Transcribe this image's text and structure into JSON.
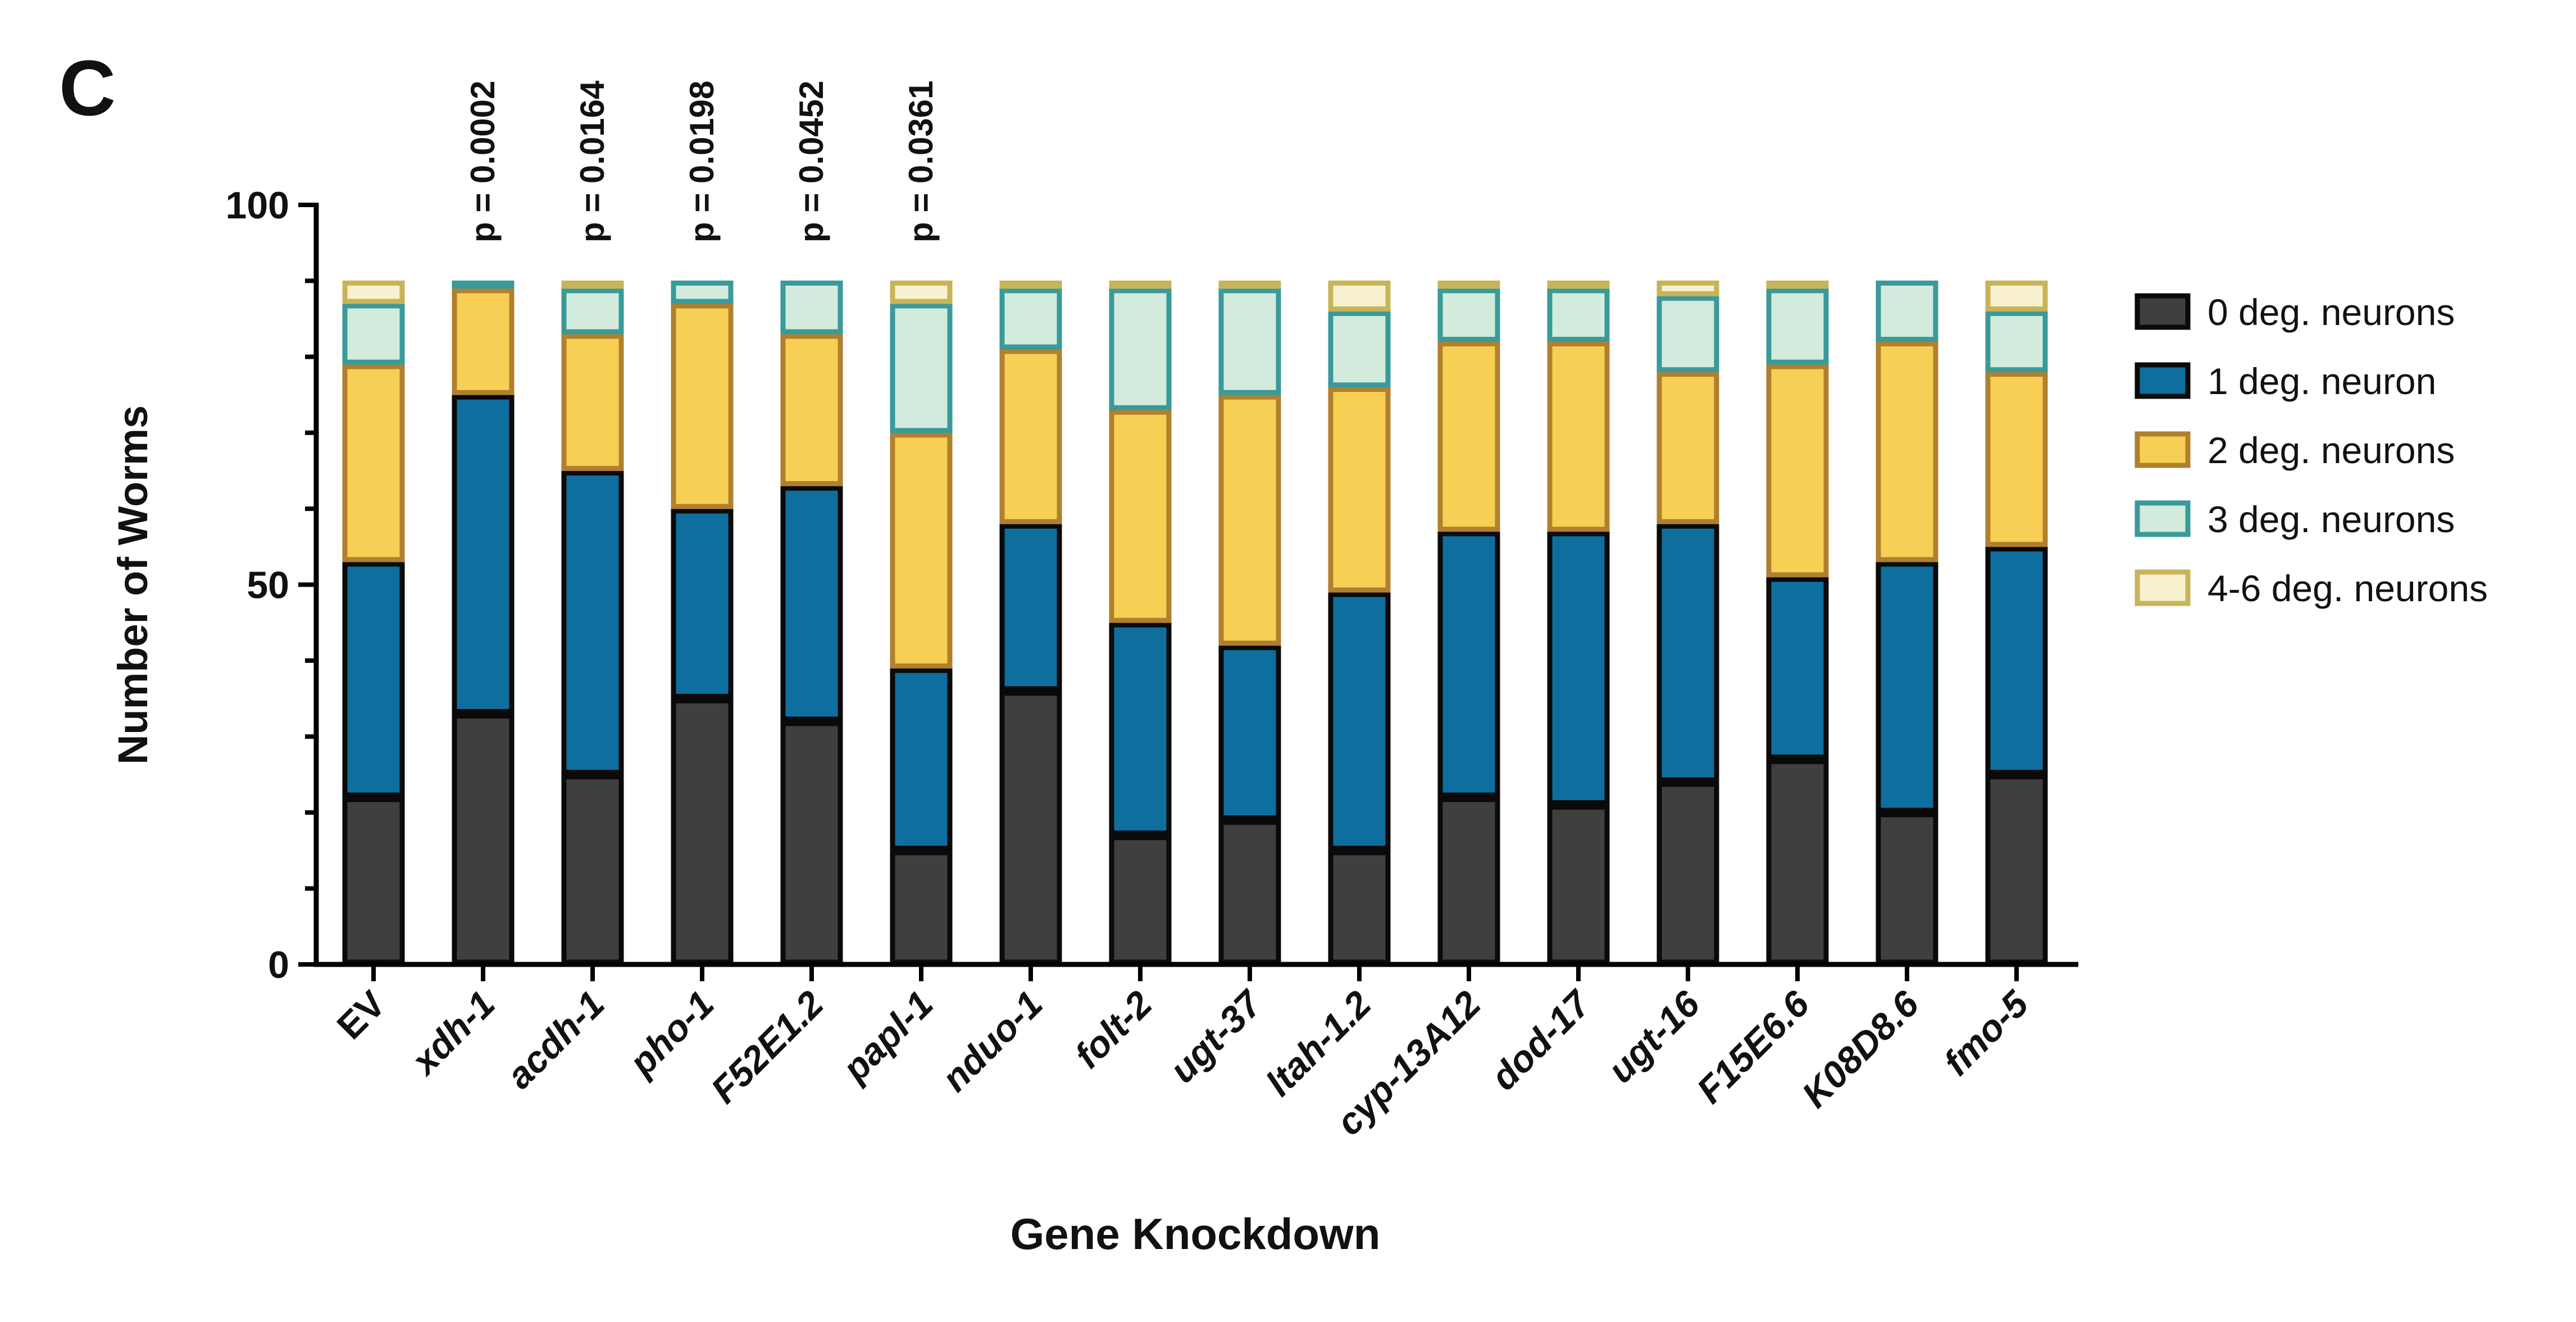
{
  "panel_label": "C",
  "colors": {
    "0 deg. neurons": {
      "fill": "#3f3f3f",
      "stroke": "#0a0a0a"
    },
    "1 deg. neuron": {
      "fill": "#0e6f9e",
      "stroke": "#0a0a0a"
    },
    "2 deg. neurons": {
      "fill": "#f7cf54",
      "stroke": "#b0802e"
    },
    "3 deg. neurons": {
      "fill": "#d3ebdc",
      "stroke": "#3a9a9a"
    },
    "4-6 deg. neurons": {
      "fill": "#f7f1cf",
      "stroke": "#c7b459"
    },
    "pvalue_default": "#111111",
    "pvalue_highlight": "#ee1c24"
  },
  "chart_data": {
    "type": "bar",
    "stacked": true,
    "title": "",
    "xlabel": "Gene Knockdown",
    "ylabel": "Number of Worms",
    "ylim": [
      0,
      100
    ],
    "yticks": [
      0,
      50,
      100
    ],
    "legend_position": "right",
    "categories": [
      "EV",
      "xdh-1",
      "acdh-1",
      "pho-1",
      "F52E1.2",
      "papl-1",
      "nduo-1",
      "folt-2",
      "ugt-37",
      "ltah-1.2",
      "cyp-13A12",
      "dod-17",
      "ugt-16",
      "F15E6.6",
      "K08D8.6",
      "fmo-5"
    ],
    "italic_categories": [
      false,
      true,
      true,
      true,
      true,
      true,
      true,
      true,
      true,
      true,
      true,
      true,
      true,
      true,
      true,
      true
    ],
    "series": [
      {
        "name": "0 deg. neurons",
        "values": [
          22,
          33,
          25,
          35,
          32,
          15,
          36,
          17,
          19,
          15,
          22,
          21,
          24,
          27,
          20,
          25
        ]
      },
      {
        "name": "1 deg. neuron",
        "values": [
          31,
          42,
          40,
          25,
          31,
          24,
          22,
          28,
          23,
          34,
          35,
          36,
          34,
          24,
          33,
          30
        ]
      },
      {
        "name": "2 deg. neurons",
        "values": [
          26,
          14,
          18,
          27,
          20,
          31,
          23,
          28,
          33,
          27,
          25,
          25,
          20,
          28,
          29,
          23
        ]
      },
      {
        "name": "3 deg. neurons",
        "values": [
          8,
          1,
          6,
          3,
          7,
          17,
          8,
          16,
          14,
          10,
          7,
          7,
          10,
          10,
          8,
          8
        ]
      },
      {
        "name": "4-6 deg. neurons",
        "values": [
          3,
          0,
          1,
          0,
          0,
          3,
          1,
          1,
          1,
          4,
          1,
          1,
          2,
          1,
          0,
          4
        ]
      }
    ],
    "annotations": [
      {
        "category": "xdh-1",
        "text": "p = 0.0002",
        "highlight": false
      },
      {
        "category": "acdh-1",
        "text": "p = 0.0164",
        "highlight": false
      },
      {
        "category": "pho-1",
        "text": "p = 0.0198",
        "highlight": false
      },
      {
        "category": "F52E1.2",
        "text": "p = 0.0452",
        "highlight": false
      },
      {
        "category": "papl-1",
        "text": "p = 0.0361",
        "highlight": true
      }
    ]
  }
}
